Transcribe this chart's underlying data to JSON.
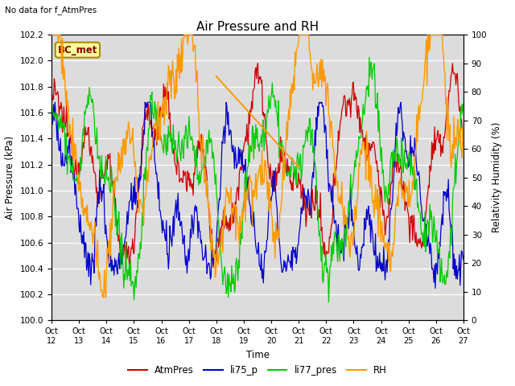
{
  "title": "Air Pressure and RH",
  "no_data_text": "No data for f_AtmPres",
  "bc_met_label": "BC_met",
  "xlabel": "Time",
  "ylabel_left": "Air Pressure (kPa)",
  "ylabel_right": "Relativity Humidity (%)",
  "ylim_left": [
    100.0,
    102.2
  ],
  "ylim_right": [
    0,
    100
  ],
  "yticks_left": [
    100.0,
    100.2,
    100.4,
    100.6,
    100.8,
    101.0,
    101.2,
    101.4,
    101.6,
    101.8,
    102.0,
    102.2
  ],
  "yticks_right": [
    0,
    10,
    20,
    30,
    40,
    50,
    60,
    70,
    80,
    90,
    100
  ],
  "xtick_labels": [
    "Oct 12",
    "Oct 13",
    "Oct 14",
    "Oct 15",
    "Oct 16",
    "Oct 17",
    "Oct 18",
    "Oct 19",
    "Oct 20",
    "Oct 21",
    "Oct 22",
    "Oct 23",
    "Oct 24",
    "Oct 25",
    "Oct 26",
    "Oct 27"
  ],
  "colors": {
    "AtmPres": "#CC0000",
    "li75_p": "#0000CC",
    "li77_pres": "#00CC00",
    "RH": "#FF9900",
    "background": "#DCDCDC",
    "grid": "#FFFFFF"
  },
  "legend_labels": [
    "AtmPres",
    "li75_p",
    "li77_pres",
    "RH"
  ],
  "bc_met_box_color": "#FFFFA0",
  "bc_met_text_color": "#8B0000",
  "bc_met_edge_color": "#AA8800"
}
